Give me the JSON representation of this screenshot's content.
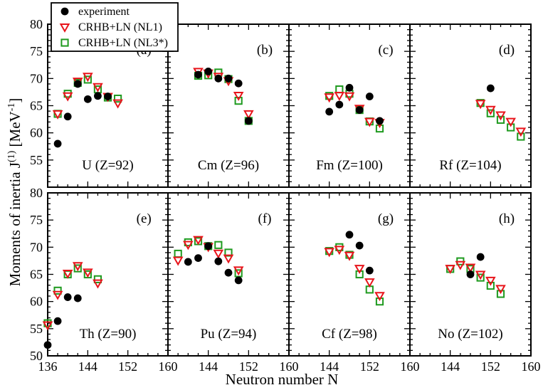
{
  "chart_data": {
    "type": "scatter",
    "xlabel": "Neutron number N",
    "ylabel": "Moments of inertia J(1) [MeV-1]",
    "ylabel_parts": {
      "main": "Moments of inertia J",
      "sup1": "(1)",
      "unit_open": " [MeV",
      "sup2": "-1",
      "unit_close": "]"
    },
    "xlim": [
      136,
      160
    ],
    "ylim": [
      50,
      80
    ],
    "x_ticks": [
      "136",
      "144",
      "152",
      "160"
    ],
    "y_ticks": [
      "50",
      "55",
      "60",
      "65",
      "70",
      "75",
      "80"
    ],
    "legend": {
      "placement": "top-left",
      "entries": [
        {
          "key": "exp",
          "label": "experiment",
          "marker": "filled-circle",
          "color": "#000000"
        },
        {
          "key": "nl1",
          "label": "CRHB+LN (NL1)",
          "marker": "down-triangle",
          "color": "#e8141b"
        },
        {
          "key": "nl3",
          "label": "CRHB+LN (NL3*)",
          "marker": "square",
          "color": "#1f9a1f"
        }
      ]
    },
    "panels": [
      {
        "tag": "(a)",
        "nucleus": "U (Z=92)",
        "exp": [
          [
            138,
            58.0
          ],
          [
            140,
            63.0
          ],
          [
            142,
            69.0
          ],
          [
            144,
            66.2
          ],
          [
            146,
            66.8
          ],
          [
            148,
            66.7
          ]
        ],
        "nl1": [
          [
            138,
            63.5
          ],
          [
            140,
            66.8
          ],
          [
            142,
            69.5
          ],
          [
            144,
            70.4
          ],
          [
            146,
            68.5
          ],
          [
            148,
            66.7
          ],
          [
            150,
            65.5
          ]
        ],
        "nl3": [
          [
            138,
            63.5
          ],
          [
            140,
            67.2
          ],
          [
            142,
            69.2
          ],
          [
            144,
            69.8
          ],
          [
            146,
            68.0
          ],
          [
            148,
            66.5
          ],
          [
            150,
            66.3
          ]
        ]
      },
      {
        "tag": "(b)",
        "nucleus": "Cm (Z=96)",
        "exp": [
          [
            142,
            70.7
          ],
          [
            144,
            71.3
          ],
          [
            146,
            70.0
          ],
          [
            148,
            70.0
          ],
          [
            150,
            69.1
          ],
          [
            152,
            62.2
          ]
        ],
        "nl1": [
          [
            142,
            71.3
          ],
          [
            144,
            71.0
          ],
          [
            146,
            70.4
          ],
          [
            148,
            69.6
          ],
          [
            150,
            66.9
          ],
          [
            152,
            63.5
          ]
        ],
        "nl3": [
          [
            142,
            70.5
          ],
          [
            144,
            70.6
          ],
          [
            146,
            71.1
          ],
          [
            148,
            69.9
          ],
          [
            150,
            65.9
          ],
          [
            152,
            62.2
          ]
        ]
      },
      {
        "tag": "(c)",
        "nucleus": "Fm (Z=100)",
        "exp": [
          [
            144,
            63.9
          ],
          [
            146,
            65.2
          ],
          [
            148,
            68.3
          ],
          [
            150,
            64.2
          ],
          [
            152,
            66.7
          ],
          [
            154,
            62.2
          ]
        ],
        "nl1": [
          [
            144,
            66.6
          ],
          [
            146,
            66.9
          ],
          [
            148,
            66.8
          ],
          [
            150,
            64.5
          ],
          [
            152,
            62.1
          ],
          [
            154,
            61.9
          ]
        ],
        "nl3": [
          [
            144,
            66.8
          ],
          [
            146,
            68.0
          ],
          [
            148,
            67.2
          ],
          [
            150,
            64.2
          ],
          [
            152,
            62.1
          ],
          [
            154,
            60.8
          ]
        ]
      },
      {
        "tag": "(d)",
        "nucleus": "Rf (Z=104)",
        "exp": [
          [
            152,
            68.2
          ]
        ],
        "nl1": [
          [
            150,
            65.4
          ],
          [
            152,
            64.3
          ],
          [
            154,
            63.3
          ],
          [
            156,
            62.1
          ],
          [
            158,
            60.3
          ]
        ],
        "nl3": [
          [
            150,
            65.5
          ],
          [
            152,
            63.6
          ],
          [
            154,
            62.4
          ],
          [
            156,
            61.0
          ],
          [
            158,
            59.3
          ]
        ]
      },
      {
        "tag": "(e)",
        "nucleus": "Th (Z=90)",
        "exp": [
          [
            136,
            52.0
          ],
          [
            138,
            56.4
          ],
          [
            140,
            60.8
          ],
          [
            142,
            60.6
          ]
        ],
        "nl1": [
          [
            136,
            55.7
          ],
          [
            138,
            61.3
          ],
          [
            140,
            65.2
          ],
          [
            142,
            66.6
          ],
          [
            144,
            65.4
          ],
          [
            146,
            63.4
          ]
        ],
        "nl3": [
          [
            136,
            56.0
          ],
          [
            138,
            62.0
          ],
          [
            140,
            65.0
          ],
          [
            142,
            66.1
          ],
          [
            144,
            65.0
          ],
          [
            146,
            64.1
          ]
        ]
      },
      {
        "tag": "(f)",
        "nucleus": "Pu (Z=94)",
        "exp": [
          [
            140,
            67.3
          ],
          [
            142,
            68.0
          ],
          [
            144,
            70.2
          ],
          [
            146,
            67.4
          ],
          [
            148,
            65.3
          ],
          [
            150,
            63.9
          ]
        ],
        "nl1": [
          [
            138,
            67.6
          ],
          [
            140,
            70.5
          ],
          [
            142,
            71.4
          ],
          [
            144,
            70.1
          ],
          [
            146,
            68.9
          ],
          [
            148,
            68.0
          ],
          [
            150,
            65.8
          ]
        ],
        "nl3": [
          [
            138,
            68.8
          ],
          [
            140,
            70.9
          ],
          [
            142,
            71.1
          ],
          [
            144,
            70.2
          ],
          [
            146,
            70.4
          ],
          [
            148,
            69.0
          ],
          [
            150,
            65.2
          ]
        ]
      },
      {
        "tag": "(g)",
        "nucleus": "Cf (Z=98)",
        "exp": [
          [
            148,
            72.3
          ],
          [
            150,
            70.3
          ],
          [
            152,
            65.7
          ]
        ],
        "nl1": [
          [
            144,
            69.2
          ],
          [
            146,
            69.6
          ],
          [
            148,
            68.5
          ],
          [
            150,
            66.1
          ],
          [
            152,
            63.6
          ],
          [
            154,
            61.1
          ]
        ],
        "nl3": [
          [
            144,
            69.3
          ],
          [
            146,
            70.0
          ],
          [
            148,
            68.6
          ],
          [
            150,
            65.0
          ],
          [
            152,
            62.2
          ],
          [
            154,
            60.0
          ]
        ]
      },
      {
        "tag": "(h)",
        "nucleus": "No (Z=102)",
        "exp": [
          [
            148,
            65.0
          ],
          [
            150,
            68.2
          ]
        ],
        "nl1": [
          [
            144,
            66.1
          ],
          [
            146,
            66.8
          ],
          [
            148,
            66.3
          ],
          [
            150,
            65.0
          ],
          [
            152,
            63.9
          ],
          [
            154,
            62.4
          ]
        ],
        "nl3": [
          [
            144,
            66.0
          ],
          [
            146,
            67.4
          ],
          [
            148,
            66.0
          ],
          [
            150,
            64.4
          ],
          [
            152,
            62.9
          ],
          [
            154,
            61.4
          ]
        ]
      }
    ]
  }
}
